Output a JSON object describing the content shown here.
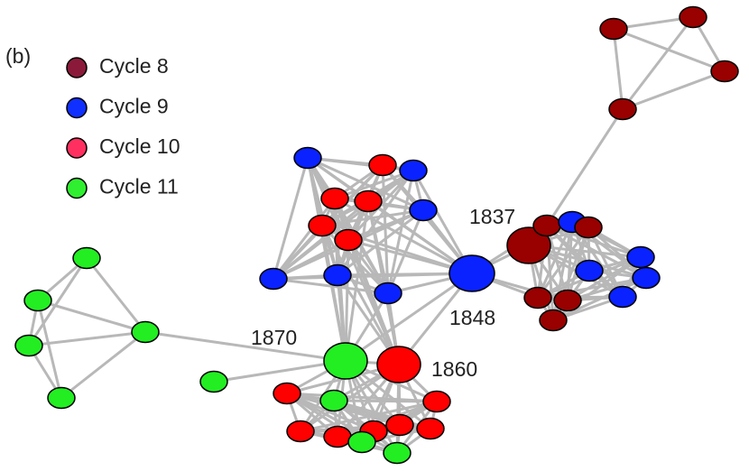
{
  "panel_label": "(b)",
  "legend": [
    {
      "name": "Cycle 8",
      "color": "#8b1a3a"
    },
    {
      "name": "Cycle 9",
      "color": "#1030ff"
    },
    {
      "name": "Cycle 10",
      "color": "#ff3060"
    },
    {
      "name": "Cycle 11",
      "color": "#30ee30"
    }
  ],
  "node_labels": [
    "1837",
    "1848",
    "1860",
    "1870"
  ]
}
